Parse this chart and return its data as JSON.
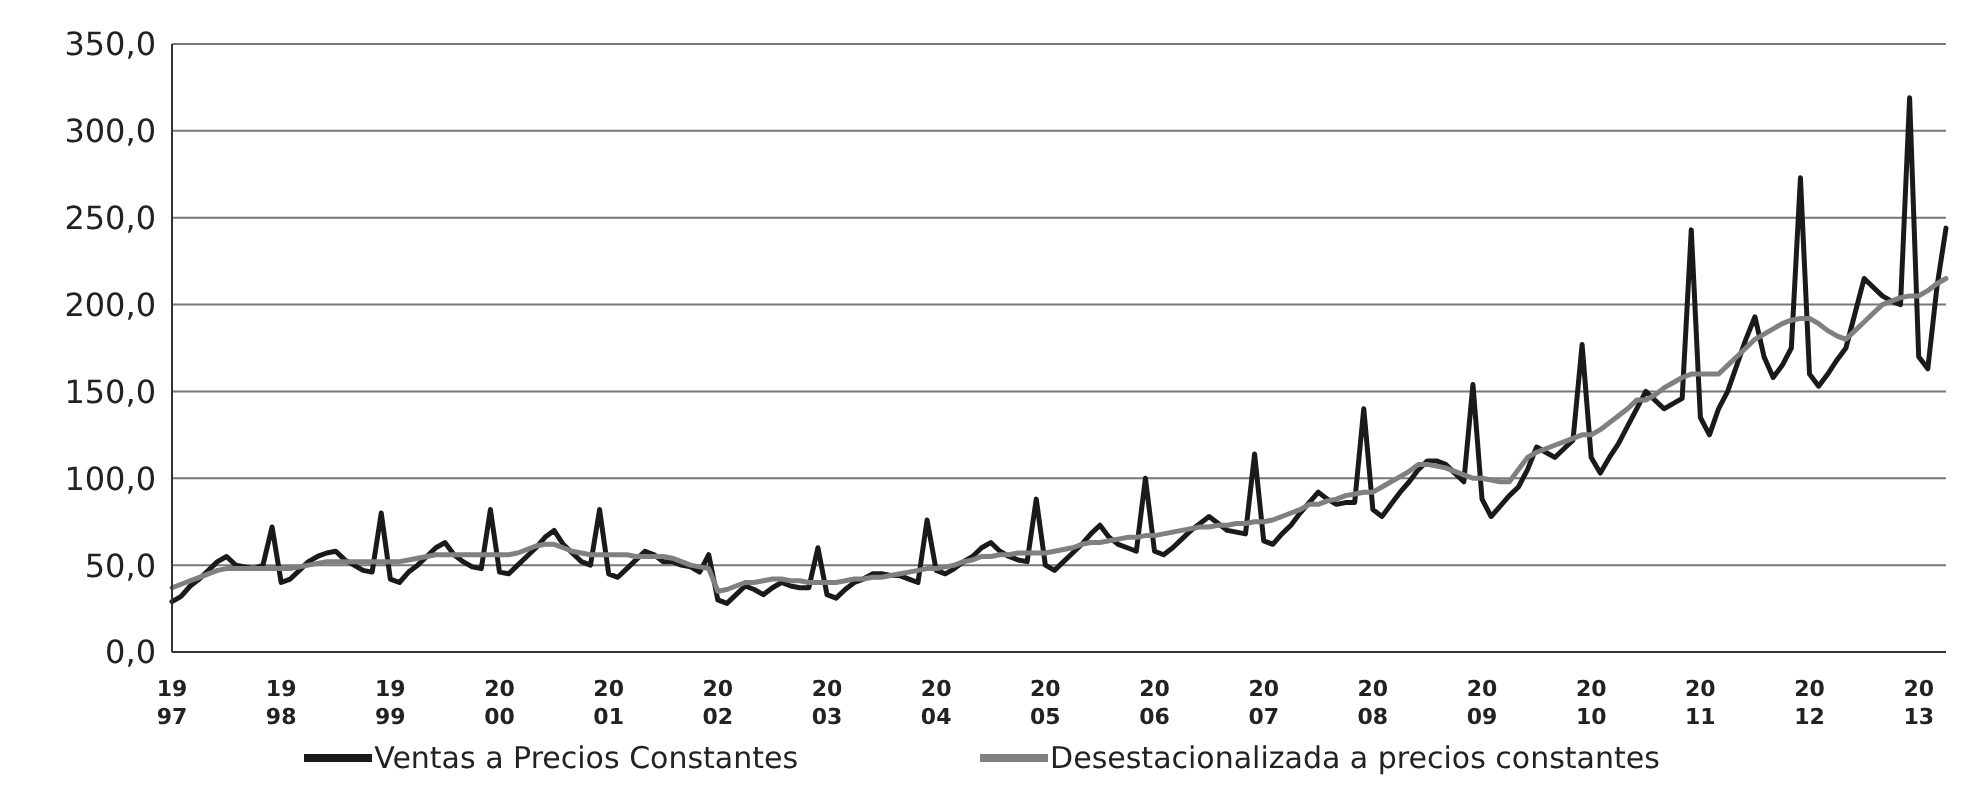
{
  "chart_data": {
    "type": "line",
    "categories": [
      "19\n97",
      null,
      null,
      null,
      null,
      null,
      null,
      null,
      null,
      null,
      null,
      null,
      "19\n98",
      null,
      null,
      null,
      null,
      null,
      null,
      null,
      null,
      null,
      null,
      null,
      "19\n99",
      null,
      null,
      null,
      null,
      null,
      null,
      null,
      null,
      null,
      null,
      null,
      "20\n00",
      null,
      null,
      null,
      null,
      null,
      null,
      null,
      null,
      null,
      null,
      null,
      "20\n01",
      null,
      null,
      null,
      null,
      null,
      null,
      null,
      null,
      null,
      null,
      null,
      "20\n02",
      null,
      null,
      null,
      null,
      null,
      null,
      null,
      null,
      null,
      null,
      null,
      "20\n03",
      null,
      null,
      null,
      null,
      null,
      null,
      null,
      null,
      null,
      null,
      null,
      "20\n04",
      null,
      null,
      null,
      null,
      null,
      null,
      null,
      null,
      null,
      null,
      null,
      "20\n05",
      null,
      null,
      null,
      null,
      null,
      null,
      null,
      null,
      null,
      null,
      null,
      "20\n06",
      null,
      null,
      null,
      null,
      null,
      null,
      null,
      null,
      null,
      null,
      null,
      "20\n07",
      null,
      null,
      null,
      null,
      null,
      null,
      null,
      null,
      null,
      null,
      null,
      "20\n08",
      null,
      null,
      null,
      null,
      null,
      null,
      null,
      null,
      null,
      null,
      null,
      "20\n09",
      null,
      null,
      null,
      null,
      null,
      null,
      null,
      null,
      null,
      null,
      null,
      "20\n10",
      null,
      null,
      null,
      null,
      null,
      null,
      null,
      null,
      null,
      null,
      null,
      "20\n11",
      null,
      null,
      null,
      null,
      null,
      null,
      null,
      null,
      null,
      null,
      null,
      "20\n12",
      null,
      null,
      null,
      null,
      null,
      null,
      null,
      null,
      null,
      null,
      null,
      "20\n13",
      null,
      null,
      null
    ],
    "ylim": [
      0,
      350
    ],
    "yticks": [
      {
        "value": 0,
        "label": "0,0"
      },
      {
        "value": 50,
        "label": "50,0"
      },
      {
        "value": 100,
        "label": "100,0"
      },
      {
        "value": 150,
        "label": "150,0"
      },
      {
        "value": 200,
        "label": "200,0"
      },
      {
        "value": 250,
        "label": "250,0"
      },
      {
        "value": 300,
        "label": "300,0"
      },
      {
        "value": 350,
        "label": "350,0"
      }
    ],
    "grid": "y",
    "legend": "bottom",
    "marker": "none",
    "line_style": "solid",
    "series": [
      {
        "name": "Ventas a Precios Constantes",
        "color": "#1a1a1a",
        "values": [
          29,
          32,
          38,
          42,
          47,
          52,
          55,
          50,
          49,
          48,
          50,
          72,
          40,
          42,
          47,
          52,
          55,
          57,
          58,
          53,
          50,
          47,
          46,
          80,
          42,
          40,
          46,
          50,
          55,
          60,
          63,
          56,
          52,
          49,
          48,
          82,
          46,
          45,
          50,
          55,
          60,
          66,
          70,
          62,
          57,
          52,
          50,
          82,
          45,
          43,
          48,
          53,
          58,
          56,
          52,
          52,
          50,
          49,
          46,
          56,
          30,
          28,
          33,
          38,
          36,
          33,
          37,
          40,
          38,
          37,
          37,
          60,
          33,
          31,
          36,
          40,
          42,
          45,
          45,
          44,
          44,
          42,
          40,
          76,
          47,
          45,
          48,
          52,
          55,
          60,
          63,
          58,
          55,
          53,
          52,
          88,
          50,
          47,
          52,
          57,
          62,
          68,
          73,
          66,
          62,
          60,
          58,
          100,
          58,
          56,
          60,
          65,
          70,
          74,
          78,
          74,
          70,
          69,
          68,
          114,
          64,
          62,
          68,
          73,
          80,
          86,
          92,
          88,
          85,
          86,
          86,
          140,
          82,
          78,
          85,
          92,
          98,
          105,
          110,
          110,
          108,
          103,
          98,
          154,
          88,
          78,
          84,
          90,
          95,
          105,
          118,
          115,
          112,
          117,
          122,
          177,
          112,
          103,
          112,
          120,
          130,
          140,
          150,
          145,
          140,
          143,
          146,
          243,
          135,
          125,
          140,
          150,
          165,
          180,
          193,
          170,
          158,
          165,
          175,
          273,
          160,
          153,
          160,
          168,
          175,
          195,
          215,
          210,
          205,
          202,
          200,
          319,
          170,
          163,
          210,
          244
        ]
      },
      {
        "name": "Desestacionalizada a precios constantes",
        "color": "#808080",
        "values": [
          37,
          39,
          41,
          43,
          45,
          47,
          48,
          48,
          48,
          48,
          48,
          48,
          48,
          48,
          49,
          50,
          51,
          52,
          52,
          52,
          52,
          52,
          52,
          52,
          52,
          52,
          53,
          54,
          55,
          56,
          56,
          56,
          56,
          56,
          56,
          56,
          56,
          56,
          57,
          59,
          61,
          62,
          62,
          60,
          58,
          57,
          56,
          56,
          56,
          56,
          56,
          55,
          55,
          55,
          55,
          54,
          52,
          50,
          49,
          48,
          35,
          36,
          38,
          40,
          40,
          41,
          42,
          42,
          41,
          41,
          40,
          40,
          40,
          40,
          41,
          42,
          42,
          43,
          43,
          44,
          45,
          46,
          47,
          48,
          48,
          49,
          50,
          52,
          53,
          55,
          55,
          56,
          56,
          57,
          57,
          57,
          57,
          58,
          59,
          60,
          62,
          63,
          63,
          64,
          65,
          66,
          66,
          67,
          67,
          68,
          69,
          70,
          71,
          72,
          72,
          73,
          73,
          74,
          74,
          75,
          75,
          76,
          78,
          80,
          82,
          85,
          85,
          87,
          88,
          90,
          91,
          92,
          92,
          95,
          98,
          101,
          104,
          108,
          108,
          107,
          106,
          104,
          102,
          100,
          100,
          99,
          98,
          98,
          105,
          112,
          115,
          117,
          119,
          121,
          123,
          125,
          125,
          128,
          132,
          136,
          140,
          145,
          145,
          148,
          152,
          155,
          158,
          160,
          160,
          160,
          160,
          165,
          170,
          175,
          180,
          183,
          186,
          189,
          191,
          192,
          192,
          189,
          185,
          182,
          180,
          185,
          190,
          195,
          200,
          202,
          204,
          205,
          205,
          208,
          212,
          215
        ]
      }
    ]
  }
}
